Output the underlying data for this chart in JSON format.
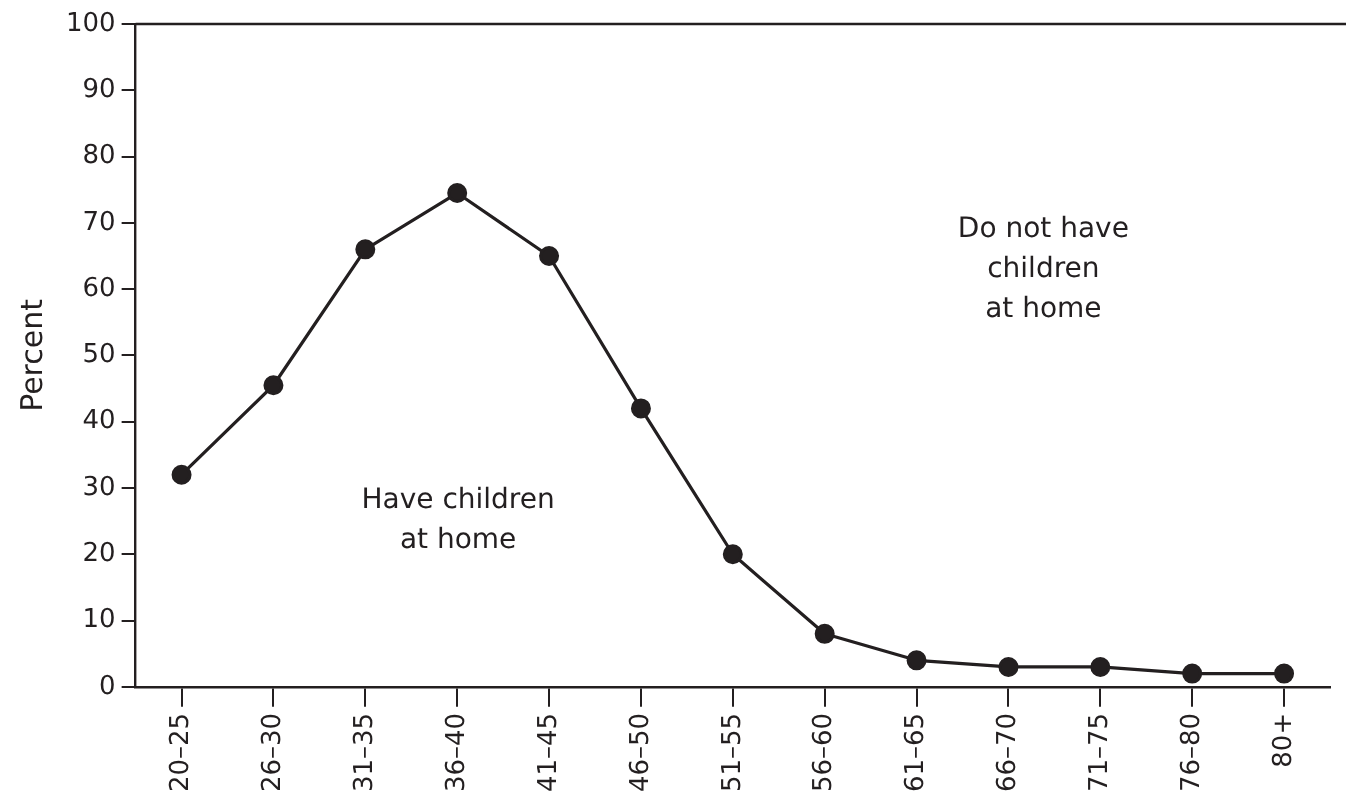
{
  "chart_data": {
    "type": "line",
    "ylabel": "Percent",
    "categories": [
      "20–25",
      "26–30",
      "31–35",
      "36–40",
      "41–45",
      "46–50",
      "51–55",
      "56–60",
      "61–65",
      "66–70",
      "71–75",
      "76–80",
      "80+"
    ],
    "series": [
      {
        "color": "#231f20",
        "values": [
          32,
          45.5,
          66,
          74.5,
          65,
          42,
          20,
          8,
          4,
          3,
          3,
          2,
          2
        ]
      }
    ],
    "ylim": [
      0,
      100
    ],
    "yticks": [
      0,
      10,
      20,
      30,
      40,
      50,
      60,
      70,
      80,
      90,
      100
    ],
    "grid": false,
    "legend": false,
    "marker": "circle",
    "line_style": "solid",
    "annotations": [
      "Have children\nat home",
      "Do not have\nchildren\nat home"
    ]
  }
}
